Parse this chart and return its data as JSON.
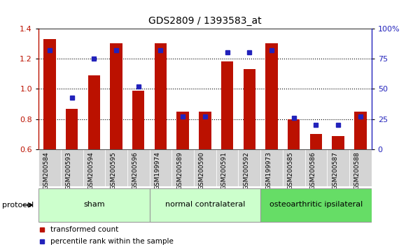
{
  "title": "GDS2809 / 1393583_at",
  "categories": [
    "GSM200584",
    "GSM200593",
    "GSM200594",
    "GSM200595",
    "GSM200596",
    "GSM199974",
    "GSM200589",
    "GSM200590",
    "GSM200591",
    "GSM200592",
    "GSM199973",
    "GSM200585",
    "GSM200586",
    "GSM200587",
    "GSM200588"
  ],
  "red_values": [
    1.33,
    0.87,
    1.09,
    1.3,
    0.99,
    1.3,
    0.85,
    0.85,
    1.18,
    1.13,
    1.3,
    0.8,
    0.7,
    0.69,
    0.85
  ],
  "blue_values": [
    82,
    43,
    75,
    82,
    52,
    82,
    27,
    27,
    80,
    80,
    82,
    26,
    20,
    20,
    27
  ],
  "red_color": "#bb1100",
  "blue_color": "#2222bb",
  "ylim_left": [
    0.6,
    1.4
  ],
  "ylim_right": [
    0,
    100
  ],
  "yticks_left": [
    0.6,
    0.8,
    1.0,
    1.2,
    1.4
  ],
  "yticks_right": [
    0,
    25,
    50,
    75,
    100
  ],
  "ytick_labels_right": [
    "0",
    "25",
    "50",
    "75",
    "100%"
  ],
  "groups": [
    {
      "label": "sham",
      "start": 0,
      "end": 4,
      "color": "#ccffcc"
    },
    {
      "label": "normal contralateral",
      "start": 5,
      "end": 9,
      "color": "#ccffcc"
    },
    {
      "label": "osteoarthritic ipsilateral",
      "start": 10,
      "end": 14,
      "color": "#66dd66"
    }
  ],
  "legend_red": "transformed count",
  "legend_blue": "percentile rank within the sample",
  "protocol_label": "protocol"
}
